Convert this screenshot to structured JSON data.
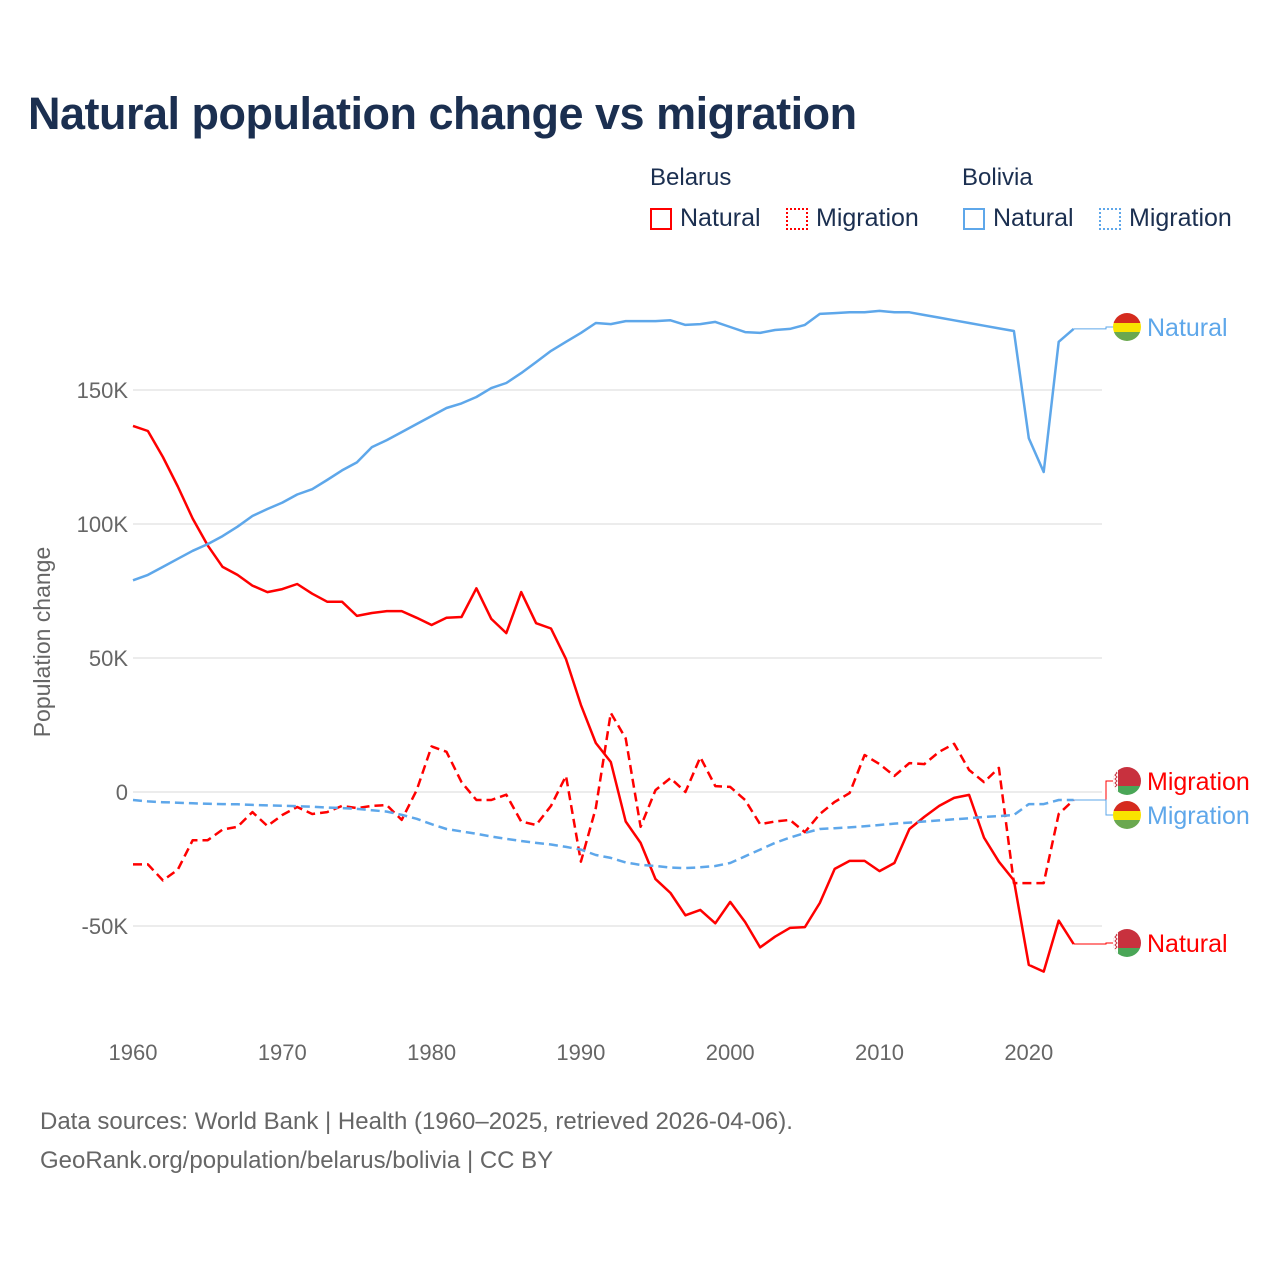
{
  "title": "Natural population change vs migration",
  "legend": {
    "groups": [
      {
        "name": "Belarus",
        "items": [
          "Natural",
          "Migration"
        ],
        "color": "#ff0000"
      },
      {
        "name": "Bolivia",
        "items": [
          "Natural",
          "Migration"
        ],
        "color": "#5ea7ea"
      }
    ]
  },
  "footer": {
    "line1": "Data sources: World Bank | Health (1960–2025, retrieved 2026-04-06).",
    "line2": "GeoRank.org/population/belarus/bolivia | CC BY"
  },
  "chart_data": {
    "type": "line",
    "title": "Natural population change vs migration",
    "xlabel": "",
    "ylabel": "Population change",
    "xlim": [
      1960,
      2025
    ],
    "ylim": [
      -75000,
      185000
    ],
    "x_ticks": [
      {
        "v": 1960,
        "label": "1960"
      },
      {
        "v": 1970,
        "label": "1970"
      },
      {
        "v": 1980,
        "label": "1980"
      },
      {
        "v": 1990,
        "label": "1990"
      },
      {
        "v": 2000,
        "label": "2000"
      },
      {
        "v": 2010,
        "label": "2010"
      },
      {
        "v": 2020,
        "label": "2020"
      }
    ],
    "y_ticks": [
      {
        "v": 150000,
        "label": "150K"
      },
      {
        "v": 100000,
        "label": "100K"
      },
      {
        "v": 50000,
        "label": "50K"
      },
      {
        "v": 0,
        "label": "0"
      },
      {
        "v": -50000,
        "label": "-50K"
      }
    ],
    "grid": true,
    "legend_position": "top-right",
    "x_start": 1960,
    "series": [
      {
        "name": "Belarus Natural",
        "end_label": "Natural",
        "flag": "belarus",
        "color": "#ff0000",
        "dash": false,
        "values": [
          136.6,
          134.7,
          125,
          114,
          102,
          92,
          84,
          81,
          77,
          74.6,
          75.7,
          77.6,
          74,
          71,
          71,
          65.7,
          66.8,
          67.5,
          67.5,
          65,
          62.3,
          65,
          65.3,
          76,
          64.6,
          59.3,
          74.6,
          63,
          61,
          49.6,
          32.5,
          18.3,
          11.2,
          -11,
          -19,
          -32.5,
          -37.7,
          -46,
          -44,
          -49,
          -41,
          -48.5,
          -58,
          -54,
          -50.7,
          -50.4,
          -41.4,
          -28.7,
          -25.7,
          -25.7,
          -29.5,
          -26.5,
          -13.8,
          -9.3,
          -5.2,
          -2.2,
          -1.1,
          -17,
          -26,
          -33,
          -64.5,
          -67,
          -48,
          -56.7
        ]
      },
      {
        "name": "Belarus Migration",
        "end_label": "Migration",
        "flag": "belarus",
        "color": "#ff0000",
        "dash": true,
        "values": [
          -27,
          -27,
          -33,
          -29,
          -18,
          -18,
          -14,
          -13,
          -7.5,
          -12.7,
          -8.6,
          -5.6,
          -8.2,
          -7.5,
          -5.2,
          -6,
          -5.2,
          -4.9,
          -10.4,
          0.7,
          17,
          15,
          3.7,
          -3,
          -3,
          -1,
          -11,
          -12.3,
          -5.2,
          6,
          -26,
          -6,
          29.5,
          20,
          -13,
          0.7,
          5.2,
          0,
          13,
          2.2,
          1.9,
          -3,
          -12,
          -11,
          -10.4,
          -15,
          -8.2,
          -3.7,
          -0.4,
          13.8,
          10.4,
          6,
          10.8,
          10.4,
          15,
          18,
          8.2,
          3.7,
          9,
          -34,
          -34,
          -34,
          -8.2,
          -3
        ]
      },
      {
        "name": "Bolivia Natural",
        "end_label": "Natural",
        "flag": "bolivia",
        "color": "#5ea7ea",
        "dash": false,
        "values": [
          79,
          81,
          84,
          87,
          90,
          92.5,
          95.5,
          99,
          103,
          105.6,
          108,
          111,
          113,
          116.4,
          120,
          123,
          128.7,
          131.3,
          134.3,
          137.3,
          140.3,
          143.3,
          145,
          147.4,
          150.7,
          152.6,
          156.3,
          160.4,
          164.6,
          168,
          171.3,
          175,
          174.6,
          175.7,
          175.7,
          175.7,
          176,
          174.3,
          174.6,
          175.4,
          173.5,
          171.6,
          171.3,
          172.4,
          172.8,
          174.3,
          178.4,
          178.7,
          179,
          179,
          179.5,
          179,
          179,
          178,
          177,
          176,
          175,
          174,
          173,
          172,
          132,
          119.4,
          168,
          172.8
        ]
      },
      {
        "name": "Bolivia Migration",
        "end_label": "Migration",
        "flag": "bolivia",
        "color": "#5ea7ea",
        "dash": true,
        "values": [
          -3,
          -3.5,
          -3.8,
          -4,
          -4.2,
          -4.4,
          -4.5,
          -4.6,
          -4.8,
          -5,
          -5.1,
          -5.3,
          -5.5,
          -5.8,
          -6,
          -6.3,
          -6.8,
          -7.3,
          -8.5,
          -10,
          -12,
          -13.8,
          -14.7,
          -15.6,
          -16.6,
          -17.5,
          -18.3,
          -19,
          -19.6,
          -20.5,
          -21.5,
          -23.5,
          -24.6,
          -26.3,
          -27.2,
          -27.6,
          -28.2,
          -28.4,
          -28.1,
          -27.6,
          -26.5,
          -24,
          -21.5,
          -19,
          -17,
          -15.3,
          -13.8,
          -13.5,
          -13.2,
          -12.8,
          -12.3,
          -11.8,
          -11.4,
          -11,
          -10.6,
          -10.2,
          -9.8,
          -9.3,
          -9,
          -8.6,
          -4.5,
          -4.5,
          -3,
          -3
        ]
      }
    ],
    "units_note": "values in thousands"
  }
}
